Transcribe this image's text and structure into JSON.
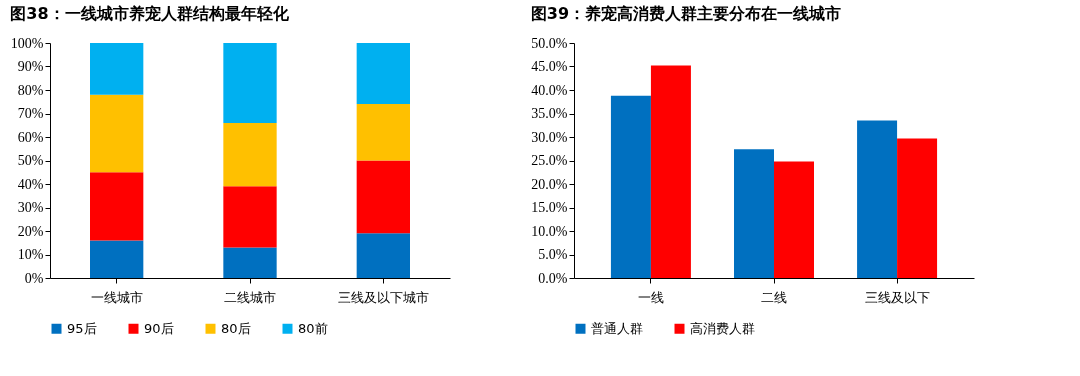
{
  "chart_data": [
    {
      "type": "bar",
      "title": "图38：一线城市养宠人群结构最年轻化",
      "stacked": true,
      "categories": [
        "一线城市",
        "二线城市",
        "三线及以下城市"
      ],
      "series": [
        {
          "name": "95后",
          "color": "#0070c0",
          "values": [
            16,
            13,
            19
          ]
        },
        {
          "name": "90后",
          "color": "#ff0000",
          "values": [
            29,
            26,
            31
          ]
        },
        {
          "name": "80后",
          "color": "#ffc000",
          "values": [
            33,
            27,
            24
          ]
        },
        {
          "name": "80前",
          "color": "#00b0f0",
          "values": [
            22,
            34,
            26
          ]
        }
      ],
      "ylim": [
        0,
        100
      ],
      "yticks": [
        {
          "value": 0,
          "label": "0%"
        },
        {
          "value": 10,
          "label": "10%"
        },
        {
          "value": 20,
          "label": "20%"
        },
        {
          "value": 30,
          "label": "30%"
        },
        {
          "value": 40,
          "label": "40%"
        },
        {
          "value": 50,
          "label": "50%"
        },
        {
          "value": 60,
          "label": "60%"
        },
        {
          "value": 70,
          "label": "70%"
        },
        {
          "value": 80,
          "label": "80%"
        },
        {
          "value": 90,
          "label": "90%"
        },
        {
          "value": 100,
          "label": "100%"
        }
      ],
      "grid": false,
      "legend": "bottom"
    },
    {
      "type": "bar",
      "title": "图39：养宠高消费人群主要分布在一线城市",
      "categories": [
        "一线",
        "二线",
        "三线及以下"
      ],
      "series": [
        {
          "name": "普通人群",
          "color": "#0070c0",
          "values": [
            38.8,
            27.4,
            33.5
          ]
        },
        {
          "name": "高消费人群",
          "color": "#ff0000",
          "values": [
            45.2,
            24.8,
            29.7
          ]
        }
      ],
      "ylim": [
        0,
        50
      ],
      "yticks": [
        {
          "value": 0,
          "label": "0.0%"
        },
        {
          "value": 5,
          "label": "5.0%"
        },
        {
          "value": 10,
          "label": "10.0%"
        },
        {
          "value": 15,
          "label": "15.0%"
        },
        {
          "value": 20,
          "label": "20.0%"
        },
        {
          "value": 25,
          "label": "25.0%"
        },
        {
          "value": 30,
          "label": "30.0%"
        },
        {
          "value": 35,
          "label": "35.0%"
        },
        {
          "value": 40,
          "label": "40.0%"
        },
        {
          "value": 45,
          "label": "45.0%"
        },
        {
          "value": 50,
          "label": "50.0%"
        }
      ],
      "grid": false,
      "legend": "bottom"
    }
  ]
}
